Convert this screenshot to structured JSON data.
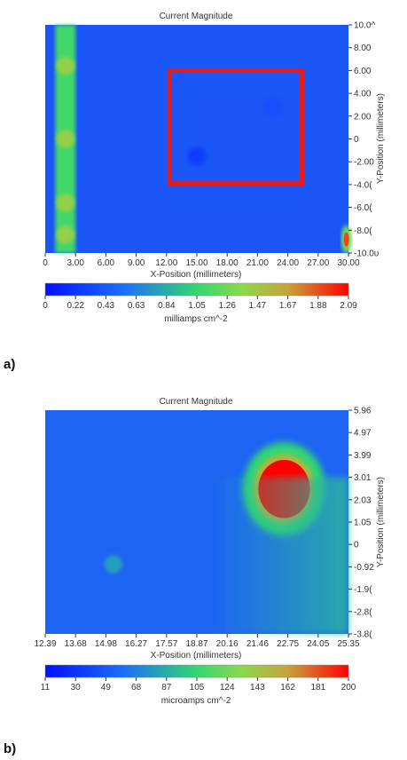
{
  "chart_data": [
    {
      "type": "heatmap",
      "panel_label": "a)",
      "title": "Current Magnitude",
      "xlabel": "X-Position (millimeters)",
      "ylabel": "Y-Position (millimeters)",
      "xlim": [
        0,
        30
      ],
      "ylim": [
        -10,
        10
      ],
      "x_ticks": [
        "0",
        "3.00",
        "6.00",
        "9.00",
        "12.00",
        "15.00",
        "18.00",
        "21.00",
        "24.00",
        "27.00",
        "30.00"
      ],
      "y_ticks": [
        "10.0^",
        "8.00",
        "6.00",
        "4.00",
        "2.00",
        "0",
        "-2.00",
        "-4.0(",
        "-6.0(",
        "-8.0(",
        "-10.0υ"
      ],
      "colorbar": {
        "label": "milliamps cm^-2",
        "ticks": [
          "0",
          "0.22",
          "0.43",
          "0.63",
          "0.84",
          "1.05",
          "1.26",
          "1.47",
          "1.67",
          "1.88",
          "2.09"
        ],
        "range": [
          0,
          2.09
        ]
      },
      "background_value": 0.1,
      "features": [
        {
          "kind": "vertical-band",
          "x_center": 2.0,
          "half_width": 1.0,
          "value": 1.1
        },
        {
          "kind": "corner-hotspot",
          "x": 29.8,
          "y": -8.8,
          "value": 1.9
        },
        {
          "kind": "spot",
          "x": 22.5,
          "y": 2.8,
          "value": 0.35
        },
        {
          "kind": "spot",
          "x": 15.0,
          "y": -1.5,
          "value": 0.25
        }
      ],
      "highlight_box": {
        "x_range": [
          12.3,
          25.4
        ],
        "y_range": [
          -3.9,
          6.0
        ],
        "color": "#e41a1c"
      }
    },
    {
      "type": "heatmap",
      "panel_label": "b)",
      "title": "Current Magnitude",
      "xlabel": "X-Position (millimeters)",
      "ylabel": "Y-Position (millimeters)",
      "xlim": [
        12.39,
        25.35
      ],
      "ylim": [
        -3.86,
        5.96
      ],
      "x_ticks": [
        "12.39",
        "13.68",
        "14.98",
        "16.27",
        "17.57",
        "18.87",
        "20.16",
        "21.46",
        "22.75",
        "24.05",
        "25.35"
      ],
      "y_ticks": [
        "5.96",
        "4.97",
        "3.99",
        "3.01",
        "2.03",
        "1.05",
        "0",
        "-0.92",
        "-1.9(",
        "-2.8(",
        "-3.8("
      ],
      "colorbar": {
        "label": "microamps cm^-2",
        "ticks": [
          "11",
          "30",
          "49",
          "68",
          "87",
          "105",
          "124",
          "143",
          "162",
          "181",
          "200"
        ],
        "range": [
          11,
          200
        ]
      },
      "background_value": 35,
      "features": [
        {
          "kind": "hotspot",
          "x": 22.6,
          "y": 2.5,
          "value": 200
        },
        {
          "kind": "spot",
          "x": 15.3,
          "y": -0.8,
          "value": 80
        },
        {
          "kind": "edge-gradient",
          "side": "right",
          "value": 90
        }
      ]
    }
  ]
}
